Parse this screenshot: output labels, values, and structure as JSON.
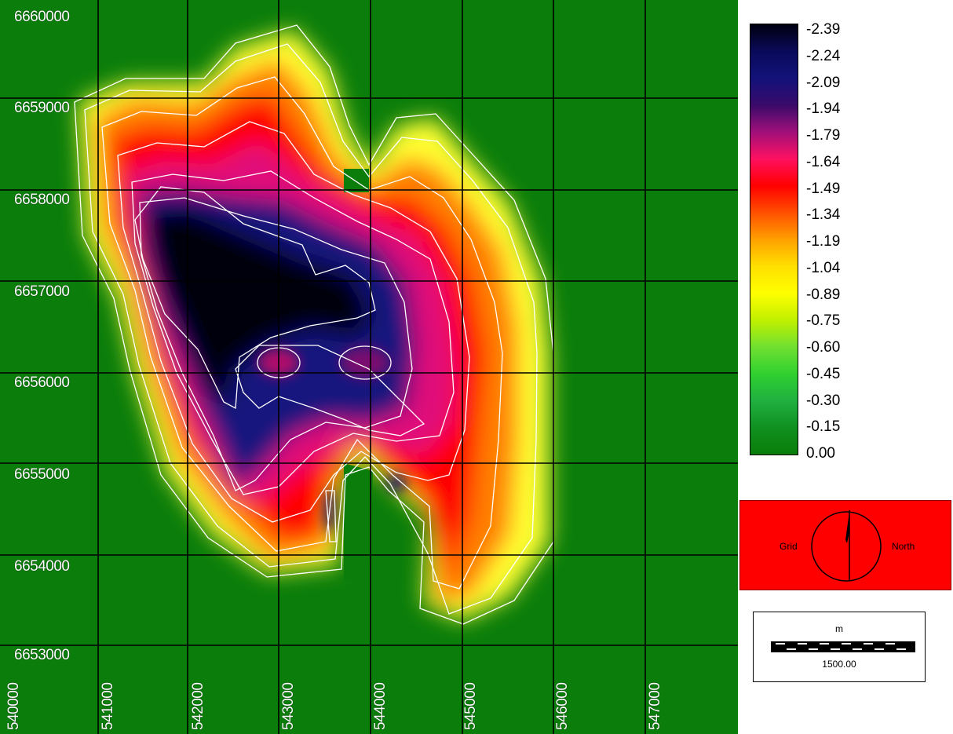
{
  "map": {
    "background_color": "#0a7d0a",
    "grid_color": "#000000",
    "contour_color": "#ffffff",
    "y_labels": [
      "6660000",
      "6659000",
      "6658000",
      "6657000",
      "6656000",
      "6655000",
      "6654000",
      "6653000"
    ],
    "x_labels": [
      "540000",
      "541000",
      "542000",
      "543000",
      "544000",
      "545000",
      "546000",
      "547000"
    ]
  },
  "legend": {
    "values": [
      "-2.39",
      "-2.24",
      "-2.09",
      "-1.94",
      "-1.79",
      "-1.64",
      "-1.49",
      "-1.34",
      "-1.19",
      "-1.04",
      "-0.89",
      "-0.75",
      "-0.60",
      "-0.45",
      "-0.30",
      "-0.15",
      "0.00"
    ],
    "colors": [
      "#000010",
      "#0a0a5a",
      "#12127a",
      "#3a0a6a",
      "#a0107a",
      "#ff1060",
      "#ff0000",
      "#ff5000",
      "#ffa000",
      "#ffe000",
      "#ffff00",
      "#c0f000",
      "#70e030",
      "#30d030",
      "#20b040",
      "#109020",
      "#0a7d0a"
    ]
  },
  "north_arrow": {
    "left_word": "Grid",
    "right_word": "North",
    "panel_color": "#ff0000"
  },
  "scale_bar": {
    "unit": "m",
    "distance": "1500.00"
  }
}
